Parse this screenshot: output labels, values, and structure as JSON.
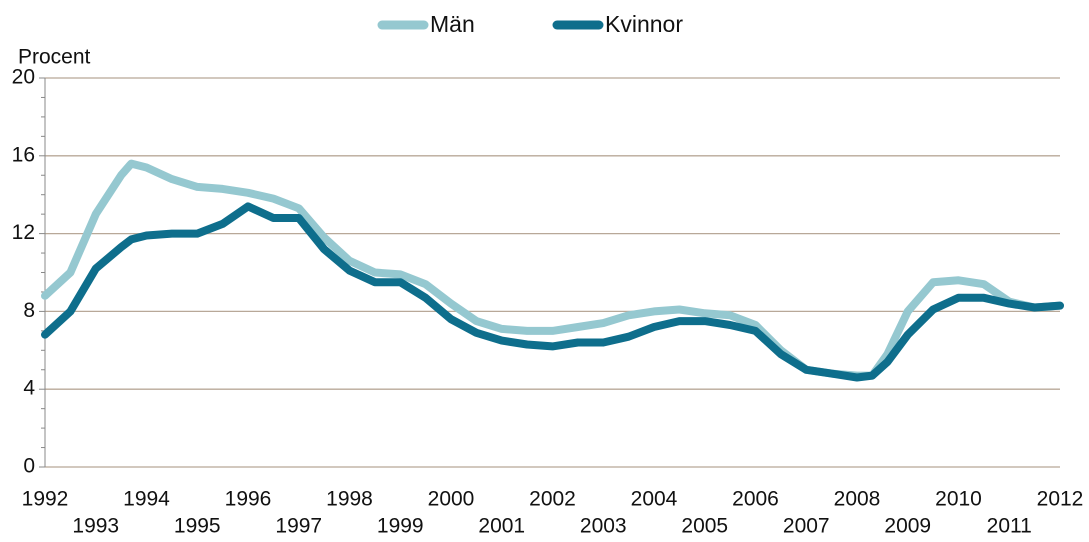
{
  "chart_data": {
    "type": "line",
    "y_label": "Procent",
    "x": [
      1992,
      1992.5,
      1993,
      1993.5,
      1993.7,
      1994,
      1994.5,
      1995,
      1995.5,
      1996,
      1996.5,
      1997,
      1997.5,
      1998,
      1998.5,
      1999,
      1999.5,
      2000,
      2000.5,
      2001,
      2001.5,
      2002,
      2002.5,
      2003,
      2003.5,
      2004,
      2004.5,
      2005,
      2005.5,
      2006,
      2006.5,
      2007,
      2007.5,
      2008,
      2008.3,
      2008.6,
      2009,
      2009.5,
      2010,
      2010.5,
      2011,
      2011.5,
      2012
    ],
    "series": [
      {
        "name": "Män",
        "color": "#95c8d0",
        "values": [
          8.8,
          10.0,
          13.0,
          15.0,
          15.6,
          15.4,
          14.8,
          14.4,
          14.3,
          14.1,
          13.8,
          13.3,
          11.8,
          10.6,
          10.0,
          9.9,
          9.4,
          8.4,
          7.5,
          7.1,
          7.0,
          7.0,
          7.2,
          7.4,
          7.8,
          8.0,
          8.1,
          7.9,
          7.8,
          7.3,
          6.0,
          5.0,
          4.8,
          4.7,
          4.7,
          5.8,
          8.0,
          9.5,
          9.6,
          9.4,
          8.5,
          8.2,
          8.3
        ]
      },
      {
        "name": "Kvinnor",
        "color": "#0e6e8c",
        "values": [
          6.8,
          8.0,
          10.2,
          11.3,
          11.7,
          11.9,
          12.0,
          12.0,
          12.5,
          13.4,
          12.8,
          12.8,
          11.2,
          10.1,
          9.5,
          9.5,
          8.7,
          7.6,
          6.9,
          6.5,
          6.3,
          6.2,
          6.4,
          6.4,
          6.7,
          7.2,
          7.5,
          7.5,
          7.3,
          7.0,
          5.8,
          5.0,
          4.8,
          4.6,
          4.7,
          5.4,
          6.8,
          8.1,
          8.7,
          8.7,
          8.4,
          8.2,
          8.3
        ]
      }
    ],
    "xlim": [
      1992,
      2012
    ],
    "xticks": [
      1992,
      1993,
      1994,
      1995,
      1996,
      1997,
      1998,
      1999,
      2000,
      2001,
      2002,
      2003,
      2004,
      2005,
      2006,
      2007,
      2008,
      2009,
      2010,
      2011,
      2012
    ],
    "ylim": [
      0,
      20
    ],
    "yticks": [
      0,
      4,
      8,
      12,
      16,
      20
    ],
    "yticks_minor": [
      1,
      2,
      3,
      5,
      6,
      7,
      9,
      10,
      11,
      13,
      14,
      15,
      17,
      18,
      19
    ],
    "grid": true,
    "grid_color": "#b8a898",
    "legend": "top"
  }
}
